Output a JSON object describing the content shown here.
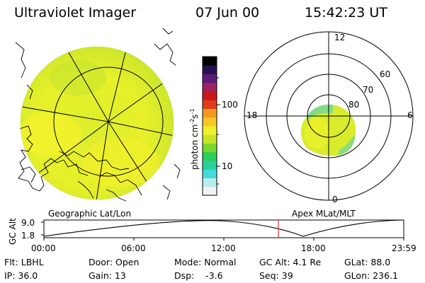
{
  "header": {
    "instrument": "Ultraviolet Imager",
    "date": "07 Jun 00",
    "time": "15:42:23 UT"
  },
  "panels": {
    "left_caption": "Geographic Lat/Lon",
    "right_caption": "Apex MLat/MLT"
  },
  "colorbar": {
    "label": "photon cm-2s-1",
    "ticks": [
      "100",
      "10"
    ],
    "colors": [
      "#f2f2f2",
      "#b9ecec",
      "#43dcdc",
      "#28d2a0",
      "#2ccf5a",
      "#79d72e",
      "#c8e428",
      "#eef02a",
      "#f5c828",
      "#f09a22",
      "#e03c1c",
      "#c8181c",
      "#9c2460",
      "#5e1c7a",
      "#2a1050",
      "#000000"
    ]
  },
  "polar_plot": {
    "mlt_labels": [
      "12",
      "18",
      "6",
      "0"
    ],
    "lat_labels": [
      "60",
      "70",
      "80"
    ]
  },
  "timeline": {
    "ylabel": "GC Alt",
    "y_ticks": [
      "9.0",
      "1.8"
    ],
    "x_ticks": [
      "00:00",
      "06:00",
      "12:00",
      "18:00",
      "23:59"
    ],
    "current_time_marker": "15:42",
    "marker_color": "#e03030"
  },
  "footer": {
    "row1": {
      "flt": "Flt: LBHL",
      "door": "Door: Open",
      "mode": "Mode: Normal",
      "gc_alt": "GC Alt: 4.1 Re",
      "glat": "GLat: 88.0"
    },
    "row2": {
      "ip": "IP: 36.0",
      "gain": "Gain: 13",
      "dsp": "Dsp:    -3.6",
      "seq": "Seq: 39",
      "glon": "GLon: 236.1"
    }
  }
}
